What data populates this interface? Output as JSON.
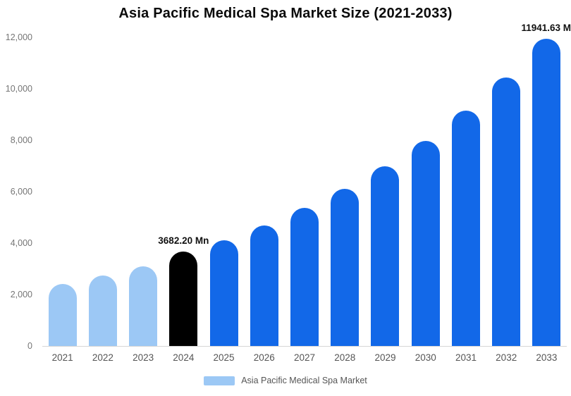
{
  "chart_data": {
    "type": "bar",
    "title": "Asia Pacific Medical Spa Market Size (2021-2033)",
    "categories": [
      "2021",
      "2022",
      "2023",
      "2024",
      "2025",
      "2026",
      "2027",
      "2028",
      "2029",
      "2030",
      "2031",
      "2032",
      "2033"
    ],
    "values": [
      2400,
      2730,
      3100,
      3682.2,
      4120,
      4690,
      5370,
      6120,
      7000,
      7980,
      9150,
      10450,
      11941.63
    ],
    "bar_colors": [
      "#9cc8f5",
      "#9cc8f5",
      "#9cc8f5",
      "#000000",
      "#1268e8",
      "#1268e8",
      "#1268e8",
      "#1268e8",
      "#1268e8",
      "#1268e8",
      "#1268e8",
      "#1268e8",
      "#1268e8"
    ],
    "annotations": [
      {
        "index": 3,
        "text": "3682.20 Mn"
      },
      {
        "index": 12,
        "text": "11941.63 M"
      }
    ],
    "ylim": [
      0,
      12000
    ],
    "yticks": {
      "values": [
        0,
        2000,
        4000,
        6000,
        8000,
        10000,
        12000
      ],
      "labels": [
        "0",
        "2,000",
        "4,000",
        "6,000",
        "8,000",
        "10,000",
        "12,000"
      ]
    },
    "xlabel": "",
    "ylabel": "",
    "grid": false,
    "legend_position": "bottom",
    "legend_label": "Asia Pacific Medical Spa Market",
    "legend_swatch_color": "#9cc8f5",
    "colors": {
      "historical": "#9cc8f5",
      "base_year": "#000000",
      "forecast": "#1268e8"
    }
  }
}
